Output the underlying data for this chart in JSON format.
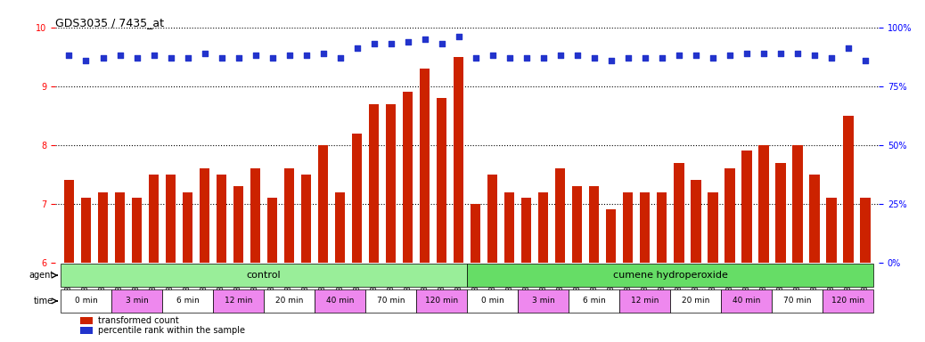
{
  "title": "GDS3035 / 7435_at",
  "samples": [
    "GSM184944",
    "GSM184952",
    "GSM184960",
    "GSM184945",
    "GSM184953",
    "GSM184961",
    "GSM184946",
    "GSM184954",
    "GSM184962",
    "GSM184947",
    "GSM184955",
    "GSM184963",
    "GSM184948",
    "GSM184956",
    "GSM184964",
    "GSM184949",
    "GSM184957",
    "GSM184965",
    "GSM184950",
    "GSM184958",
    "GSM184966",
    "GSM184951",
    "GSM184959",
    "GSM184967",
    "GSM184968",
    "GSM184976",
    "GSM184984",
    "GSM184969",
    "GSM184977",
    "GSM184985",
    "GSM184970",
    "GSM184978",
    "GSM184986",
    "GSM184971",
    "GSM184979",
    "GSM184987",
    "GSM184972",
    "GSM184980",
    "GSM184988",
    "GSM184973",
    "GSM184981",
    "GSM184989",
    "GSM184974",
    "GSM184982",
    "GSM184990",
    "GSM184975",
    "GSM184983",
    "GSM184991"
  ],
  "bar_values": [
    7.4,
    7.1,
    7.2,
    7.2,
    7.1,
    7.5,
    7.5,
    7.2,
    7.6,
    7.5,
    7.3,
    7.6,
    7.1,
    7.6,
    7.5,
    8.0,
    7.2,
    8.2,
    8.7,
    8.7,
    8.9,
    9.3,
    8.8,
    9.5,
    7.0,
    7.5,
    7.2,
    7.1,
    7.2,
    7.6,
    7.3,
    7.3,
    6.9,
    7.2,
    7.2,
    7.2,
    7.7,
    7.4,
    7.2,
    7.6,
    7.9,
    8.0,
    7.7,
    8.0,
    7.5,
    7.1,
    8.5,
    7.1
  ],
  "percentile_values": [
    88,
    86,
    87,
    88,
    87,
    88,
    87,
    87,
    89,
    87,
    87,
    88,
    87,
    88,
    88,
    89,
    87,
    91,
    93,
    93,
    94,
    95,
    93,
    96,
    87,
    88,
    87,
    87,
    87,
    88,
    88,
    87,
    86,
    87,
    87,
    87,
    88,
    88,
    87,
    88,
    89,
    89,
    89,
    89,
    88,
    87,
    91,
    86
  ],
  "ylim_left": [
    6,
    10
  ],
  "ylim_right": [
    0,
    100
  ],
  "yticks_left": [
    6,
    7,
    8,
    9,
    10
  ],
  "yticks_right": [
    0,
    25,
    50,
    75,
    100
  ],
  "bar_color": "#cc2200",
  "dot_color": "#2233cc",
  "background_color": "#ffffff",
  "agent_groups": [
    {
      "label": "control",
      "start": 0,
      "end": 24,
      "color": "#99ee99"
    },
    {
      "label": "cumene hydroperoxide",
      "start": 24,
      "end": 48,
      "color": "#66dd66"
    }
  ],
  "time_groups": [
    {
      "label": "0 min",
      "start": 0,
      "end": 3,
      "color": "#ffffff"
    },
    {
      "label": "3 min",
      "start": 3,
      "end": 6,
      "color": "#ee88ee"
    },
    {
      "label": "6 min",
      "start": 6,
      "end": 9,
      "color": "#ffffff"
    },
    {
      "label": "12 min",
      "start": 9,
      "end": 12,
      "color": "#ee88ee"
    },
    {
      "label": "20 min",
      "start": 12,
      "end": 15,
      "color": "#ffffff"
    },
    {
      "label": "40 min",
      "start": 15,
      "end": 18,
      "color": "#ee88ee"
    },
    {
      "label": "70 min",
      "start": 18,
      "end": 21,
      "color": "#ffffff"
    },
    {
      "label": "120 min",
      "start": 21,
      "end": 24,
      "color": "#ee88ee"
    },
    {
      "label": "0 min",
      "start": 24,
      "end": 27,
      "color": "#ffffff"
    },
    {
      "label": "3 min",
      "start": 27,
      "end": 30,
      "color": "#ee88ee"
    },
    {
      "label": "6 min",
      "start": 30,
      "end": 33,
      "color": "#ffffff"
    },
    {
      "label": "12 min",
      "start": 33,
      "end": 36,
      "color": "#ee88ee"
    },
    {
      "label": "20 min",
      "start": 36,
      "end": 39,
      "color": "#ffffff"
    },
    {
      "label": "40 min",
      "start": 39,
      "end": 42,
      "color": "#ee88ee"
    },
    {
      "label": "70 min",
      "start": 42,
      "end": 45,
      "color": "#ffffff"
    },
    {
      "label": "120 min",
      "start": 45,
      "end": 48,
      "color": "#ee88ee"
    }
  ]
}
